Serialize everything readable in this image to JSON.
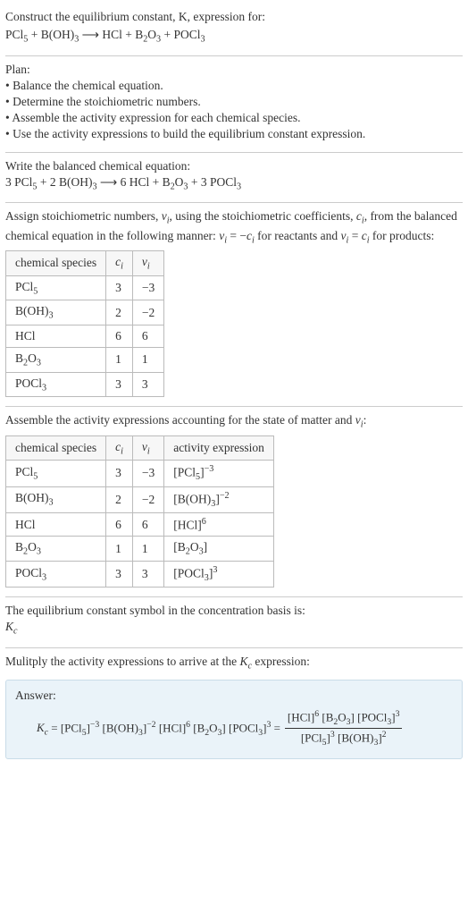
{
  "q": {
    "prompt": "Construct the equilibrium constant, K, expression for:",
    "equation_html": "PCl<sub>5</sub> + B(OH)<sub>3</sub>  <span class='arrow'>⟶</span>  HCl + B<sub>2</sub>O<sub>3</sub> + POCl<sub>3</sub>"
  },
  "plan": {
    "heading": "Plan:",
    "items": [
      "• Balance the chemical equation.",
      "• Determine the stoichiometric numbers.",
      "• Assemble the activity expression for each chemical species.",
      "• Use the activity expressions to build the equilibrium constant expression."
    ]
  },
  "balanced": {
    "heading": "Write the balanced chemical equation:",
    "equation_html": "3 PCl<sub>5</sub> + 2 B(OH)<sub>3</sub>  <span class='arrow'>⟶</span>  6 HCl + B<sub>2</sub>O<sub>3</sub> + 3 POCl<sub>3</sub>"
  },
  "stoich": {
    "heading_html": "Assign stoichiometric numbers, <i>ν<sub>i</sub></i>, using the stoichiometric coefficients, <i>c<sub>i</sub></i>, from the balanced chemical equation in the following manner: <i>ν<sub>i</sub></i> = −<i>c<sub>i</sub></i> for reactants and <i>ν<sub>i</sub></i> = <i>c<sub>i</sub></i> for products:",
    "headers": [
      "chemical species",
      "c_i",
      "v_i"
    ],
    "header_html": [
      "chemical species",
      "<i>c<sub>i</sub></i>",
      "<i>ν<sub>i</sub></i>"
    ],
    "rows": [
      {
        "sp_html": "PCl<sub>5</sub>",
        "c": "3",
        "v": "−3"
      },
      {
        "sp_html": "B(OH)<sub>3</sub>",
        "c": "2",
        "v": "−2"
      },
      {
        "sp_html": "HCl",
        "c": "6",
        "v": "6"
      },
      {
        "sp_html": "B<sub>2</sub>O<sub>3</sub>",
        "c": "1",
        "v": "1"
      },
      {
        "sp_html": "POCl<sub>3</sub>",
        "c": "3",
        "v": "3"
      }
    ]
  },
  "activity": {
    "heading_html": "Assemble the activity expressions accounting for the state of matter and <i>ν<sub>i</sub></i>:",
    "header_html": [
      "chemical species",
      "<i>c<sub>i</sub></i>",
      "<i>ν<sub>i</sub></i>",
      "activity expression"
    ],
    "rows": [
      {
        "sp_html": "PCl<sub>5</sub>",
        "c": "3",
        "v": "−3",
        "act_html": "[PCl<sub>5</sub>]<sup>−3</sup>"
      },
      {
        "sp_html": "B(OH)<sub>3</sub>",
        "c": "2",
        "v": "−2",
        "act_html": "[B(OH)<sub>3</sub>]<sup>−2</sup>"
      },
      {
        "sp_html": "HCl",
        "c": "6",
        "v": "6",
        "act_html": "[HCl]<sup>6</sup>"
      },
      {
        "sp_html": "B<sub>2</sub>O<sub>3</sub>",
        "c": "1",
        "v": "1",
        "act_html": "[B<sub>2</sub>O<sub>3</sub>]"
      },
      {
        "sp_html": "POCl<sub>3</sub>",
        "c": "3",
        "v": "3",
        "act_html": "[POCl<sub>3</sub>]<sup>3</sup>"
      }
    ]
  },
  "symbol": {
    "line1": "The equilibrium constant symbol in the concentration basis is:",
    "line2_html": "<i>K<sub>c</sub></i>"
  },
  "multiply": {
    "heading_html": "Mulitply the activity expressions to arrive at the <i>K<sub>c</sub></i> expression:"
  },
  "answer": {
    "label": "Answer:",
    "lhs_html": "<i>K<sub>c</sub></i> = [PCl<sub>5</sub>]<sup>−3</sup> [B(OH)<sub>3</sub>]<sup>−2</sup> [HCl]<sup>6</sup> [B<sub>2</sub>O<sub>3</sub>] [POCl<sub>3</sub>]<sup>3</sup> = ",
    "frac_num_html": "[HCl]<sup>6</sup> [B<sub>2</sub>O<sub>3</sub>] [POCl<sub>3</sub>]<sup>3</sup>",
    "frac_den_html": "[PCl<sub>5</sub>]<sup>3</sup> [B(OH)<sub>3</sub>]<sup>2</sup>"
  },
  "colors": {
    "rule": "#cccccc",
    "table_border": "#bbbbbb",
    "answer_bg": "#eaf3f9",
    "answer_border": "#c9dce8",
    "text": "#333333"
  }
}
